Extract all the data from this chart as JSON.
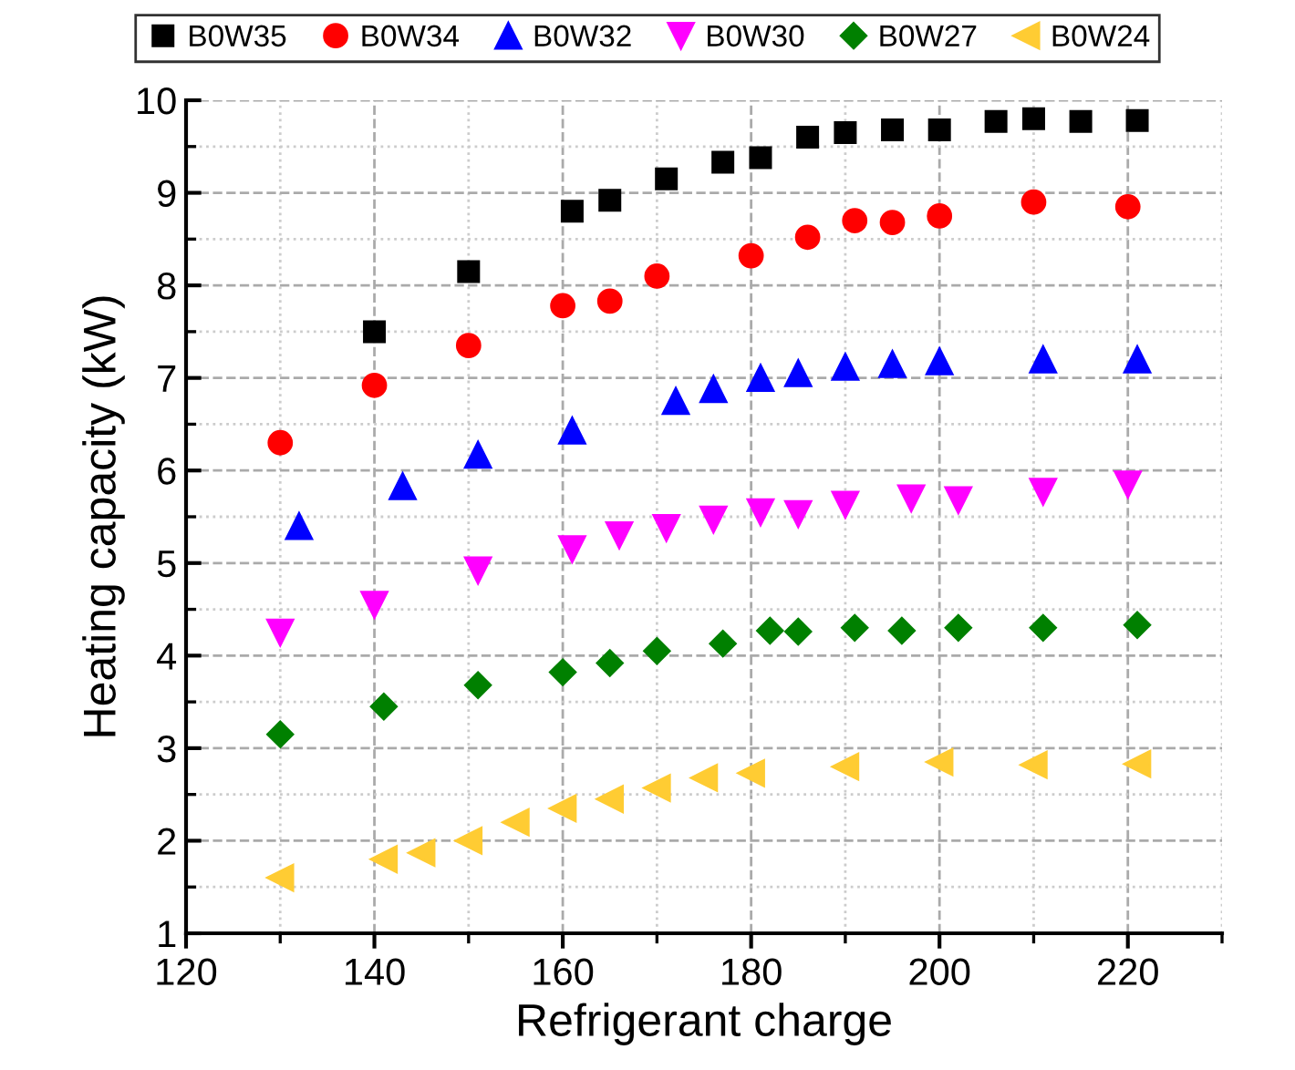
{
  "chart_data": {
    "type": "scatter",
    "xlabel": "Refrigerant charge",
    "ylabel": "Heating capacity (kW)",
    "xlim": [
      120,
      230
    ],
    "xticks": [
      120,
      140,
      160,
      180,
      200,
      220
    ],
    "ylim": [
      1,
      10
    ],
    "yticks": [
      1,
      2,
      3,
      4,
      5,
      6,
      7,
      8,
      9,
      10
    ],
    "grid": true,
    "legend": "top",
    "series": [
      {
        "name": "B0W35",
        "color": "#000000",
        "marker": "square",
        "x": [
          140,
          150,
          161,
          165,
          171,
          177,
          181,
          186,
          190,
          195,
          200,
          206,
          210,
          215,
          221
        ],
        "values": [
          7.5,
          8.15,
          8.8,
          8.92,
          9.15,
          9.33,
          9.38,
          9.6,
          9.65,
          9.68,
          9.68,
          9.77,
          9.8,
          9.77,
          9.78
        ]
      },
      {
        "name": "B0W34",
        "color": "#ff0000",
        "marker": "circle",
        "x": [
          130,
          140,
          150,
          160,
          165,
          170,
          180,
          186,
          191,
          195,
          200,
          210,
          220
        ],
        "values": [
          6.3,
          6.92,
          7.35,
          7.78,
          7.83,
          8.1,
          8.32,
          8.52,
          8.7,
          8.68,
          8.75,
          8.9,
          8.85
        ]
      },
      {
        "name": "B0W32",
        "color": "#0000ff",
        "marker": "triangle",
        "x": [
          132,
          143,
          151,
          161,
          172,
          176,
          181,
          185,
          190,
          195,
          200,
          211,
          221
        ],
        "values": [
          5.4,
          5.83,
          6.17,
          6.43,
          6.75,
          6.88,
          7.0,
          7.05,
          7.12,
          7.15,
          7.18,
          7.2,
          7.2
        ]
      },
      {
        "name": "B0W30",
        "color": "#ff00ff",
        "marker": "triangle_down",
        "x": [
          130,
          140,
          151,
          161,
          166,
          171,
          176,
          181,
          185,
          190,
          197,
          202,
          211,
          220
        ],
        "values": [
          4.25,
          4.55,
          4.92,
          5.15,
          5.3,
          5.38,
          5.47,
          5.55,
          5.53,
          5.63,
          5.7,
          5.68,
          5.77,
          5.85
        ]
      },
      {
        "name": "B0W27",
        "color": "#008000",
        "marker": "diamond",
        "x": [
          130,
          141,
          151,
          160,
          165,
          170,
          177,
          182,
          185,
          191,
          196,
          202,
          211,
          221
        ],
        "values": [
          3.15,
          3.45,
          3.68,
          3.82,
          3.92,
          4.05,
          4.13,
          4.27,
          4.26,
          4.3,
          4.27,
          4.3,
          4.3,
          4.33
        ]
      },
      {
        "name": "B0W24",
        "color": "#ffcc33",
        "marker": "triangle_left",
        "x": [
          130,
          141,
          145,
          150,
          155,
          160,
          165,
          170,
          175,
          180,
          190,
          200,
          210,
          221
        ],
        "values": [
          1.6,
          1.8,
          1.87,
          2.0,
          2.2,
          2.35,
          2.45,
          2.57,
          2.68,
          2.73,
          2.8,
          2.85,
          2.82,
          2.83
        ]
      }
    ]
  }
}
